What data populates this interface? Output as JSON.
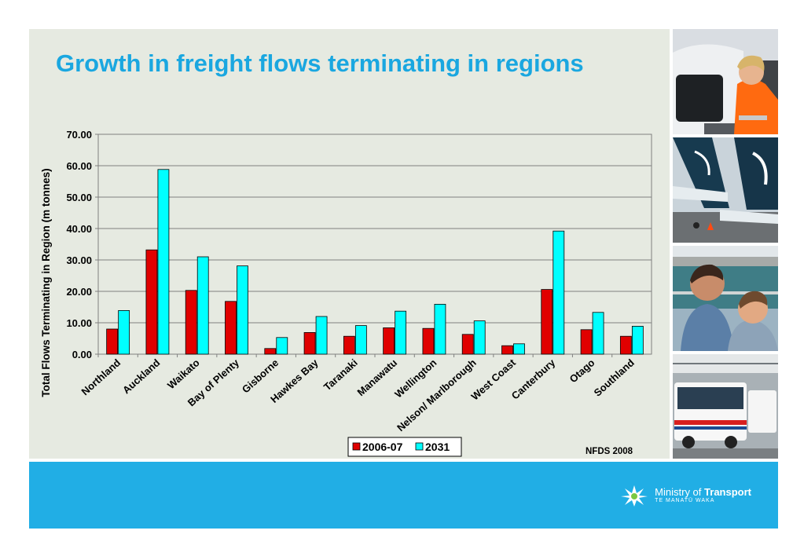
{
  "slide": {
    "title": "Growth in freight flows terminating in regions",
    "source_note": "NFDS 2008"
  },
  "branding": {
    "name_part1": "Ministry of",
    "name_part2": "Transport",
    "subtitle": "TE MANATŪ WAKA"
  },
  "photos": [
    {
      "icon": "driver-photo-icon"
    },
    {
      "icon": "aircraft-tails-photo-icon"
    },
    {
      "icon": "ferry-passengers-photo-icon"
    },
    {
      "icon": "bus-photo-icon"
    }
  ],
  "colors": {
    "title": "#1aa7e0",
    "series_2006": "#e00000",
    "series_2031": "#00ffff",
    "footer": "#21aee5",
    "panel": "#e6eae1"
  },
  "chart_data": {
    "type": "bar",
    "title": "",
    "xlabel": "",
    "ylabel": "Total Flows Terminating in Region (m tonnes)",
    "ylim": [
      0,
      70
    ],
    "yticks": [
      "0.00",
      "10.00",
      "20.00",
      "30.00",
      "40.00",
      "50.00",
      "60.00",
      "70.00"
    ],
    "grid": true,
    "legend_position": "bottom-center",
    "categories": [
      "Northland",
      "Auckland",
      "Waikato",
      "Bay of Plenty",
      "Gisborne",
      "Hawkes Bay",
      "Taranaki",
      "Manawatu",
      "Wellington",
      "Nelson/ Marlborough",
      "West Coast",
      "Canterbury",
      "Otago",
      "Southland"
    ],
    "series": [
      {
        "name": "2006-07",
        "values": [
          8.0,
          33.2,
          20.3,
          16.8,
          1.8,
          6.9,
          5.7,
          8.4,
          8.2,
          6.3,
          2.7,
          20.6,
          7.8,
          5.7
        ]
      },
      {
        "name": "2031",
        "values": [
          13.9,
          58.8,
          31.0,
          28.1,
          5.3,
          12.0,
          9.1,
          13.7,
          15.9,
          10.6,
          3.3,
          39.2,
          13.3,
          8.9
        ]
      }
    ]
  }
}
